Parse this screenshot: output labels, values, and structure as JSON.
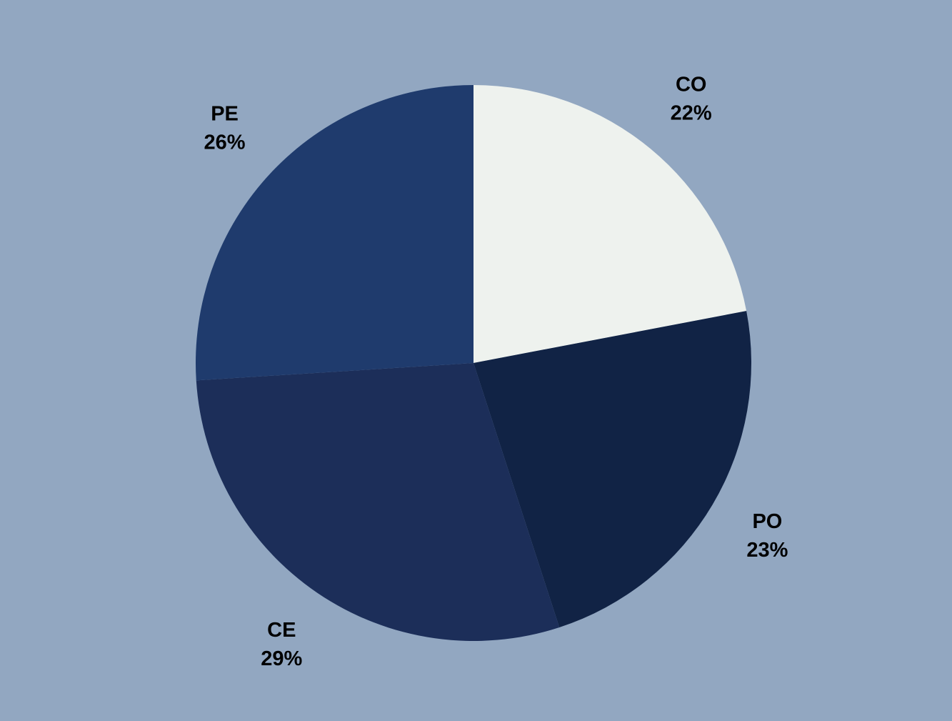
{
  "chart_data": {
    "type": "pie",
    "start": "top",
    "direction": "clockwise",
    "slices": [
      {
        "label": "CO",
        "value": 22,
        "value_label": "22%",
        "color": "#eef2ee"
      },
      {
        "label": "PO",
        "value": 23,
        "value_label": "23%",
        "color": "#112345"
      },
      {
        "label": "CE",
        "value": 29,
        "value_label": "29%",
        "color": "#1c2e59"
      },
      {
        "label": "PE",
        "value": 26,
        "value_label": "26%",
        "color": "#1f3b6d"
      }
    ],
    "colors": {
      "background": "#92a7c1",
      "label_text": "#000000"
    }
  }
}
